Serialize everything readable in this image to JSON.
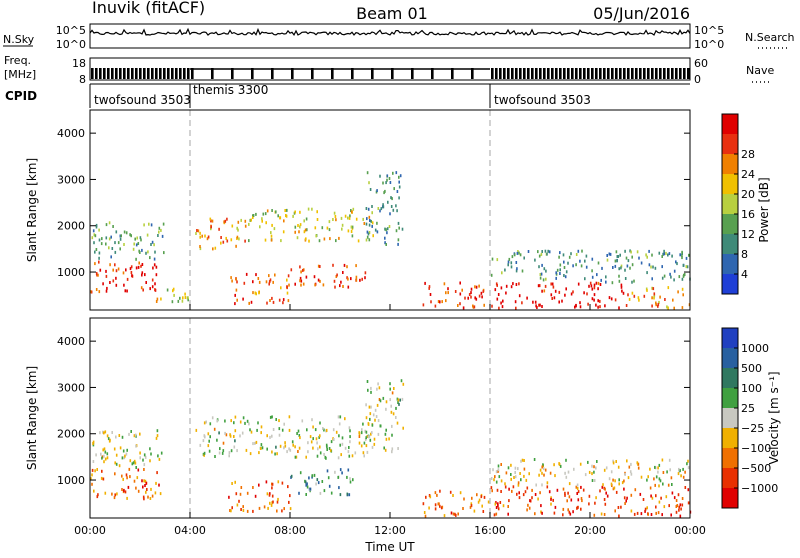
{
  "header": {
    "station": "Inuvik (fitACF)",
    "beam": "Beam 01",
    "date": "05/Jun/2016"
  },
  "noise_panel": {
    "left_label": "N.Sky",
    "right_label": "N.Search",
    "left_ticks": [
      "10^5",
      "10^0"
    ],
    "right_ticks": [
      "10^5",
      "10^0"
    ]
  },
  "freq_panel": {
    "left_label_line1": "Freq.",
    "left_label_line2": "[MHz]",
    "right_label": "Nave",
    "left_ticks": [
      "18",
      "8"
    ],
    "right_ticks": [
      "60",
      "0"
    ]
  },
  "cpid": {
    "label": "CPID",
    "segments": [
      {
        "name": "twofsound 3503",
        "start": "00:00",
        "end": "04:00"
      },
      {
        "name": "themis 3300",
        "start": "04:00",
        "end": "16:00"
      },
      {
        "name": "twofsound 3503",
        "start": "16:00",
        "end": "24:00"
      }
    ]
  },
  "colors": {
    "power": [
      "#1f3fd6",
      "#2f66b0",
      "#3f8a78",
      "#58a050",
      "#b8d040",
      "#f0c000",
      "#f08000",
      "#e83010",
      "#e00000"
    ],
    "velocity": [
      "#2040c0",
      "#2860a0",
      "#307860",
      "#40a040",
      "#c8c8c0",
      "#f0b000",
      "#f07000",
      "#e83000",
      "#e00000"
    ]
  },
  "chart_data": [
    {
      "type": "heatmap",
      "title": "Power",
      "xlabel": "",
      "ylabel": "Slant Range [km]",
      "xlim": [
        0,
        24
      ],
      "ylim": [
        180,
        4500
      ],
      "x_ticks": [
        "00:00",
        "04:00",
        "08:00",
        "12:00",
        "16:00",
        "20:00",
        "00:00"
      ],
      "y_ticks": [
        1000,
        2000,
        3000,
        4000
      ],
      "colorbar": {
        "label": "Power [dB]",
        "ticks": [
          "4",
          "8",
          "12",
          "16",
          "20",
          "24",
          "28"
        ]
      },
      "regions": [
        {
          "t0": 0.0,
          "t1": 2.8,
          "r0": 600,
          "r1": 1300,
          "level": 0.9
        },
        {
          "t0": 0.0,
          "t1": 3.0,
          "r0": 1300,
          "r1": 2100,
          "level": 0.35
        },
        {
          "t0": 2.5,
          "t1": 4.0,
          "r0": 300,
          "r1": 700,
          "level": 0.55
        },
        {
          "t0": 4.2,
          "t1": 6.3,
          "r0": 1500,
          "r1": 2200,
          "level": 0.7
        },
        {
          "t0": 6.3,
          "t1": 11.3,
          "r0": 1700,
          "r1": 2400,
          "level": 0.55
        },
        {
          "t0": 8.0,
          "t1": 11.0,
          "r0": 700,
          "r1": 1200,
          "level": 0.85
        },
        {
          "t0": 5.5,
          "t1": 8.0,
          "r0": 350,
          "r1": 1000,
          "level": 0.8
        },
        {
          "t0": 11.0,
          "t1": 12.5,
          "r0": 1600,
          "r1": 3200,
          "level": 0.3
        },
        {
          "t0": 13.3,
          "t1": 16.0,
          "r0": 250,
          "r1": 800,
          "level": 0.85
        },
        {
          "t0": 16.0,
          "t1": 21.5,
          "r0": 250,
          "r1": 800,
          "level": 0.95
        },
        {
          "t0": 16.0,
          "t1": 24.0,
          "r0": 800,
          "r1": 1500,
          "level": 0.3
        },
        {
          "t0": 21.5,
          "t1": 24.0,
          "r0": 250,
          "r1": 700,
          "level": 0.7
        }
      ]
    },
    {
      "type": "heatmap",
      "title": "Velocity",
      "xlabel": "Time UT",
      "ylabel": "Slant Range [km]",
      "xlim": [
        0,
        24
      ],
      "ylim": [
        180,
        4500
      ],
      "x_ticks": [
        "00:00",
        "04:00",
        "08:00",
        "12:00",
        "16:00",
        "20:00",
        "00:00"
      ],
      "y_ticks": [
        1000,
        2000,
        3000,
        4000
      ],
      "colorbar": {
        "label": "Velocity [m s⁻¹]",
        "ticks": [
          "1000",
          "500",
          "100",
          "25",
          "−25",
          "−100",
          "−500",
          "−1000"
        ]
      },
      "regions": [
        {
          "t0": 0.0,
          "t1": 2.8,
          "r0": 600,
          "r1": 1300,
          "level": 0.75
        },
        {
          "t0": 0.0,
          "t1": 3.0,
          "r0": 1300,
          "r1": 2100,
          "level": 0.5
        },
        {
          "t0": 4.2,
          "t1": 11.3,
          "r0": 1500,
          "r1": 2400,
          "level": 0.5
        },
        {
          "t0": 5.5,
          "t1": 8.0,
          "r0": 350,
          "r1": 1000,
          "level": 0.75
        },
        {
          "t0": 8.0,
          "t1": 10.5,
          "r0": 700,
          "r1": 1300,
          "level": 0.3
        },
        {
          "t0": 11.0,
          "t1": 12.5,
          "r0": 1600,
          "r1": 3200,
          "level": 0.5
        },
        {
          "t0": 13.3,
          "t1": 16.0,
          "r0": 250,
          "r1": 800,
          "level": 0.75
        },
        {
          "t0": 16.0,
          "t1": 24.0,
          "r0": 250,
          "r1": 900,
          "level": 0.8
        },
        {
          "t0": 16.0,
          "t1": 24.0,
          "r0": 900,
          "r1": 1500,
          "level": 0.55
        }
      ]
    }
  ]
}
